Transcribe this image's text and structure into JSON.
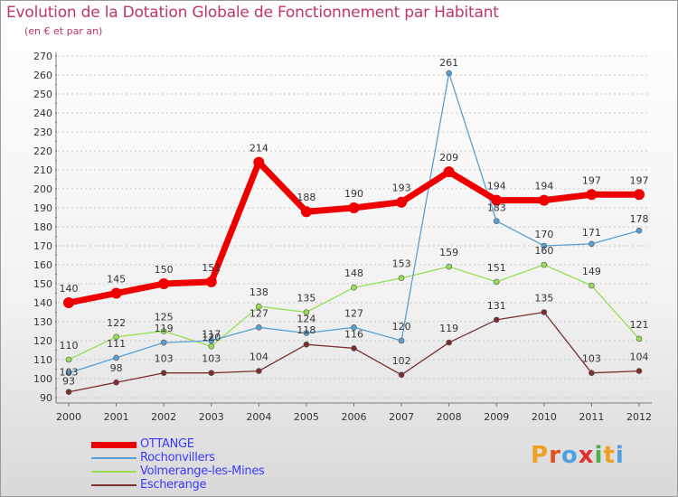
{
  "title": "Evolution de la Dotation Globale de Fonctionnement par Habitant",
  "subtitle": "(en € et par an)",
  "logo": {
    "text": "Proxiti",
    "colors": [
      "#f0a020",
      "#e05020",
      "#50a0e0",
      "#e03030",
      "#50b050",
      "#f0a020",
      "#50a0e0"
    ]
  },
  "chart_data": {
    "type": "line",
    "title": "Evolution de la Dotation Globale de Fonctionnement par Habitant",
    "subtitle": "(en € et par an)",
    "x": [
      "2000",
      "2001",
      "2002",
      "2003",
      "2004",
      "2005",
      "2006",
      "2007",
      "2008",
      "2009",
      "2010",
      "2011",
      "2012"
    ],
    "ylim": [
      90,
      270
    ],
    "yticks": [
      90,
      100,
      110,
      120,
      130,
      140,
      150,
      160,
      170,
      180,
      190,
      200,
      210,
      220,
      230,
      240,
      250,
      260,
      270
    ],
    "grid": "horizontal dashed",
    "legend_position": "bottom-left",
    "series": [
      {
        "name": "OTTANGE",
        "color": "#ee0000",
        "values": [
          140,
          145,
          150,
          151,
          214,
          188,
          190,
          193,
          209,
          194,
          194,
          197,
          197
        ]
      },
      {
        "name": "Rochonvillers",
        "color": "#5a9fd4",
        "values": [
          103,
          111,
          119,
          120,
          127,
          124,
          127,
          120,
          261,
          183,
          170,
          171,
          178
        ]
      },
      {
        "name": "Volmerange-les-Mines",
        "color": "#99dd55",
        "values": [
          110,
          122,
          125,
          117,
          138,
          135,
          148,
          153,
          159,
          151,
          160,
          149,
          121
        ]
      },
      {
        "name": "Escherange",
        "color": "#7a2e2e",
        "values": [
          93,
          98,
          103,
          103,
          104,
          118,
          116,
          102,
          119,
          131,
          135,
          103,
          104
        ]
      }
    ]
  }
}
